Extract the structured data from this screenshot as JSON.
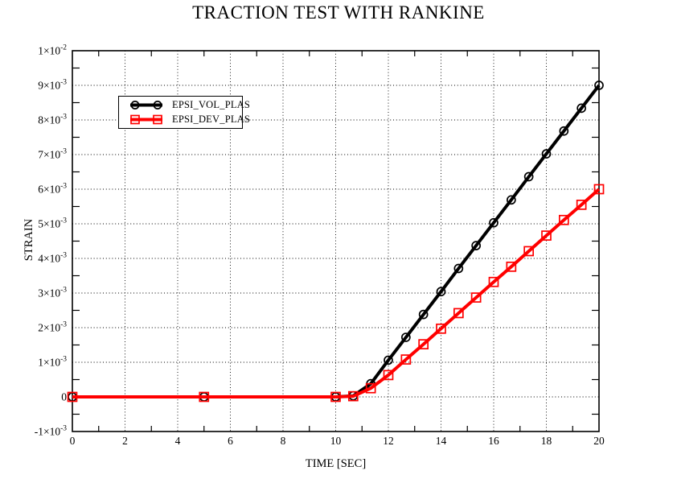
{
  "chart_data": {
    "type": "line",
    "title": "TRACTION TEST WITH RANKINE",
    "xlabel": "TIME [SEC]",
    "ylabel": "STRAIN",
    "xlim": [
      0,
      20
    ],
    "ylim": [
      -0.001,
      0.01
    ],
    "grid": "dotted-at-major-ticks",
    "legend_position": "upper-left-inside",
    "background_color": "#ffffff",
    "frame_color": "#000000",
    "x_ticks": [
      {
        "value": 0,
        "label": "0"
      },
      {
        "value": 2,
        "label": "2"
      },
      {
        "value": 4,
        "label": "4"
      },
      {
        "value": 6,
        "label": "6"
      },
      {
        "value": 8,
        "label": "8"
      },
      {
        "value": 10,
        "label": "10"
      },
      {
        "value": 12,
        "label": "12"
      },
      {
        "value": 14,
        "label": "14"
      },
      {
        "value": 16,
        "label": "16"
      },
      {
        "value": 18,
        "label": "18"
      },
      {
        "value": 20,
        "label": "20"
      }
    ],
    "x_minor_ticks": [
      1,
      3,
      5,
      7,
      9,
      11,
      13,
      15,
      17,
      19
    ],
    "y_ticks": [
      {
        "value": -0.001,
        "mantissa": "-1×10",
        "exponent": "-3"
      },
      {
        "value": 0,
        "mantissa": "0",
        "exponent": ""
      },
      {
        "value": 0.001,
        "mantissa": "1×10",
        "exponent": "-3"
      },
      {
        "value": 0.002,
        "mantissa": "2×10",
        "exponent": "-3"
      },
      {
        "value": 0.003,
        "mantissa": "3×10",
        "exponent": "-3"
      },
      {
        "value": 0.004,
        "mantissa": "4×10",
        "exponent": "-3"
      },
      {
        "value": 0.005,
        "mantissa": "5×10",
        "exponent": "-3"
      },
      {
        "value": 0.006,
        "mantissa": "6×10",
        "exponent": "-3"
      },
      {
        "value": 0.007,
        "mantissa": "7×10",
        "exponent": "-3"
      },
      {
        "value": 0.008,
        "mantissa": "8×10",
        "exponent": "-3"
      },
      {
        "value": 0.009,
        "mantissa": "9×10",
        "exponent": "-3"
      },
      {
        "value": 0.01,
        "mantissa": "1×10",
        "exponent": "-2"
      }
    ],
    "y_minor_ticks": [
      -0.0005,
      0.0005,
      0.0015,
      0.0025,
      0.0035,
      0.0045,
      0.0055,
      0.0065,
      0.0075,
      0.0085,
      0.0095
    ],
    "x_gridlines": [
      2,
      4,
      6,
      8,
      10,
      12,
      14,
      16,
      18
    ],
    "y_gridlines": [
      0,
      0.001,
      0.002,
      0.003,
      0.004,
      0.005,
      0.006,
      0.007,
      0.008,
      0.009
    ],
    "x": [
      0,
      5,
      10,
      10.667,
      11.333,
      12,
      12.667,
      13.333,
      14,
      14.667,
      15.333,
      16,
      16.667,
      17.333,
      18,
      18.667,
      19.333,
      20
    ],
    "series": [
      {
        "name": "EPSI_VOL_PLAS",
        "color": "#000000",
        "marker": "circle",
        "values": [
          0,
          0,
          0,
          3e-05,
          0.00038,
          0.00106,
          0.00172,
          0.00238,
          0.00304,
          0.00371,
          0.00437,
          0.00503,
          0.00569,
          0.00636,
          0.00702,
          0.00768,
          0.00834,
          0.009
        ]
      },
      {
        "name": "EPSI_DEV_PLAS",
        "color": "#ff0000",
        "marker": "square",
        "values": [
          0,
          0,
          0,
          2e-05,
          0.00025,
          0.00063,
          0.00108,
          0.00152,
          0.00197,
          0.00242,
          0.00287,
          0.00332,
          0.00376,
          0.00421,
          0.00466,
          0.00511,
          0.00555,
          0.006
        ]
      }
    ]
  }
}
